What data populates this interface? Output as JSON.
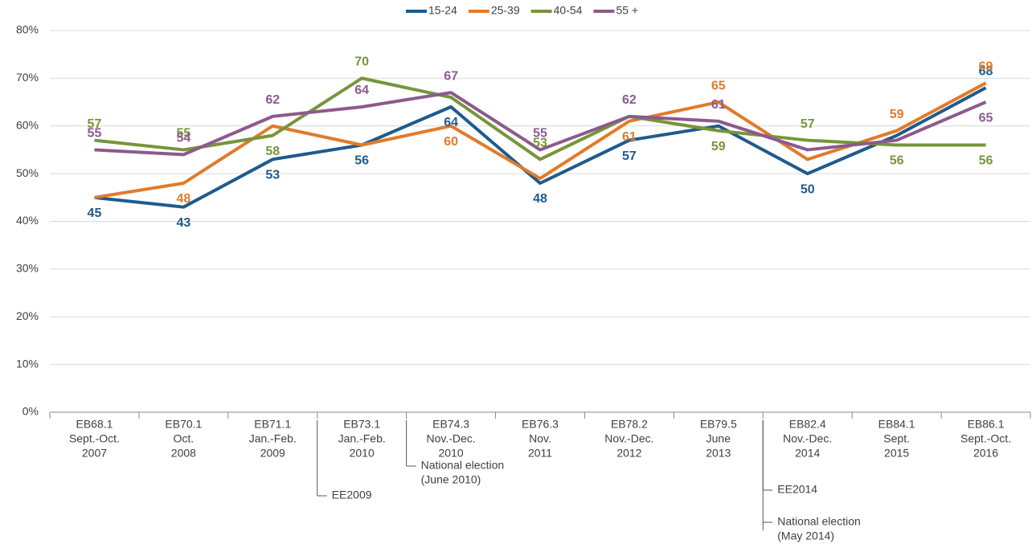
{
  "chart_data": {
    "type": "line",
    "categories": [
      [
        "EB68.1",
        "Sept.-Oct.",
        "2007"
      ],
      [
        "EB70.1",
        "Oct.",
        "2008"
      ],
      [
        "EB71.1",
        "Jan.-Feb.",
        "2009"
      ],
      [
        "EB73.1",
        "Jan.-Feb.",
        "2010"
      ],
      [
        "EB74.3",
        "Nov.-Dec.",
        "2010"
      ],
      [
        "EB76.3",
        "Nov.",
        "2011"
      ],
      [
        "EB78.2",
        "Nov.-Dec.",
        "2012"
      ],
      [
        "EB79.5",
        "June",
        "2013"
      ],
      [
        "EB82.4",
        "Nov.-Dec.",
        "2014"
      ],
      [
        "EB84.1",
        "Sept.",
        "2015"
      ],
      [
        "EB86.1",
        "Sept.-Oct.",
        "2016"
      ]
    ],
    "series": [
      {
        "name": "15-24",
        "color": "#1f5a8c",
        "values": [
          45,
          43,
          53,
          56,
          64,
          48,
          57,
          60,
          50,
          58,
          68
        ],
        "value_labels": [
          45,
          43,
          53,
          56,
          64,
          48,
          57,
          null,
          50,
          null,
          68
        ]
      },
      {
        "name": "25-39",
        "color": "#e07b2a",
        "values": [
          45,
          48,
          60,
          56,
          60,
          49,
          61,
          65,
          53,
          59,
          69
        ],
        "value_labels": [
          null,
          48,
          null,
          null,
          60,
          null,
          61,
          65,
          null,
          59,
          69
        ]
      },
      {
        "name": "40-54",
        "color": "#76953a",
        "values": [
          57,
          55,
          58,
          70,
          66,
          53,
          62,
          59,
          57,
          56,
          56
        ],
        "value_labels": [
          57,
          55,
          58,
          70,
          null,
          53,
          null,
          59,
          57,
          56,
          56
        ]
      },
      {
        "name": "55 +",
        "color": "#8c5a8c",
        "values": [
          55,
          54,
          62,
          64,
          67,
          55,
          62,
          61,
          55,
          57,
          65
        ],
        "value_labels": [
          55,
          54,
          62,
          64,
          67,
          55,
          62,
          61,
          null,
          null,
          65
        ]
      }
    ],
    "ylim": [
      0,
      80
    ],
    "yticks": [
      {
        "value": 0,
        "label": "0%"
      },
      {
        "value": 10,
        "label": "10%"
      },
      {
        "value": 20,
        "label": "20%"
      },
      {
        "value": 30,
        "label": "30%"
      },
      {
        "value": 40,
        "label": "40%"
      },
      {
        "value": 50,
        "label": "50%"
      },
      {
        "value": 60,
        "label": "60%"
      },
      {
        "value": 70,
        "label": "70%"
      },
      {
        "value": 80,
        "label": "80%"
      }
    ],
    "grid": true,
    "legend": "top",
    "annotations": [
      [
        "EE2009"
      ],
      [
        "National election",
        "(June 2010)"
      ],
      [
        "EE2014"
      ],
      [
        "National election",
        "(May 2014)"
      ]
    ]
  }
}
